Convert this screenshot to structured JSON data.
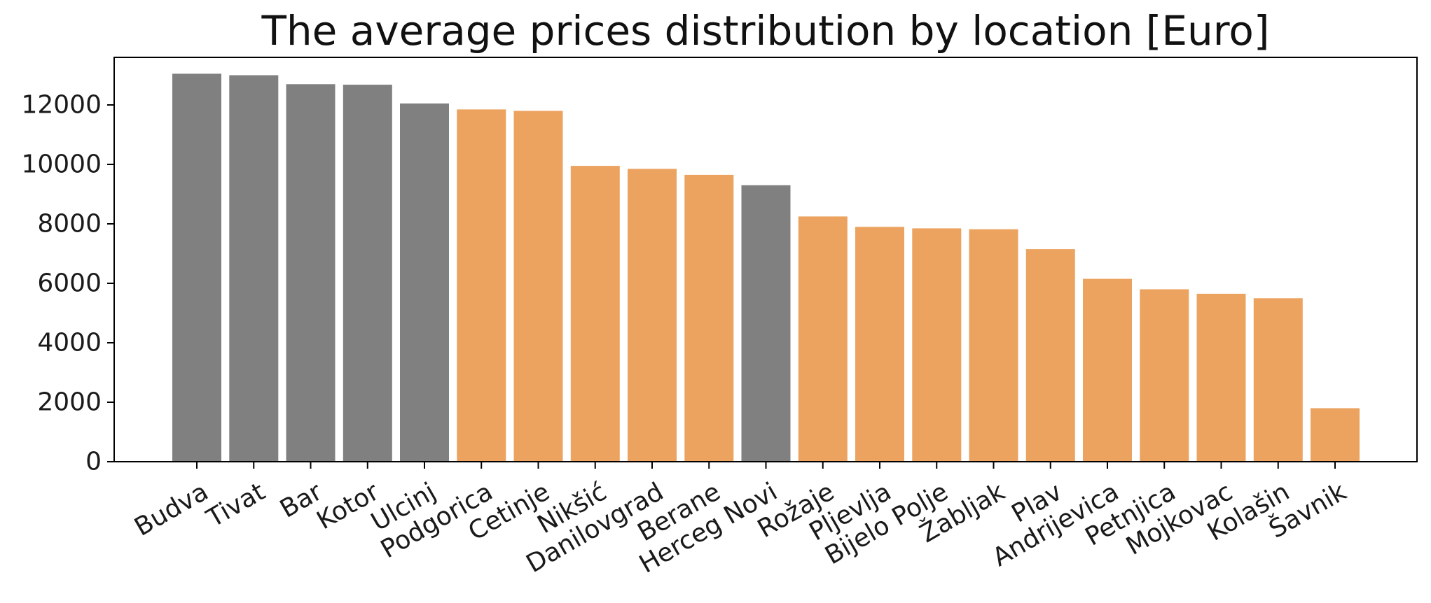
{
  "chart_data": {
    "type": "bar",
    "title": "The average prices distribution by location [Euro]",
    "xlabel": "",
    "ylabel": "",
    "ylim": [
      0,
      13600
    ],
    "yticks": [
      0,
      2000,
      4000,
      6000,
      8000,
      10000,
      12000
    ],
    "categories": [
      "Budva",
      "Tivat",
      "Bar",
      "Kotor",
      "Ulcinj",
      "Podgorica",
      "Cetinje",
      "Nikšić",
      "Danilovgrad",
      "Berane",
      "Herceg Novi",
      "Rožaje",
      "Pljevlja",
      "Bijelo Polje",
      "Žabljak",
      "Plav",
      "Andrijevica",
      "Petnjica",
      "Mojkovac",
      "Kolašin",
      "Šavnik"
    ],
    "values": [
      13050,
      13000,
      12700,
      12680,
      12050,
      11850,
      11800,
      9950,
      9850,
      9650,
      9300,
      8250,
      7900,
      7850,
      7820,
      7150,
      6150,
      5800,
      5650,
      5500,
      1800
    ],
    "is_coastal": [
      true,
      true,
      true,
      true,
      true,
      false,
      false,
      false,
      false,
      false,
      true,
      false,
      false,
      false,
      false,
      false,
      false,
      false,
      false,
      false,
      false
    ],
    "grid": false,
    "legend": "none",
    "colors": {
      "coastal": "#808080",
      "inland": "#eca360",
      "axes": "#000000"
    }
  }
}
